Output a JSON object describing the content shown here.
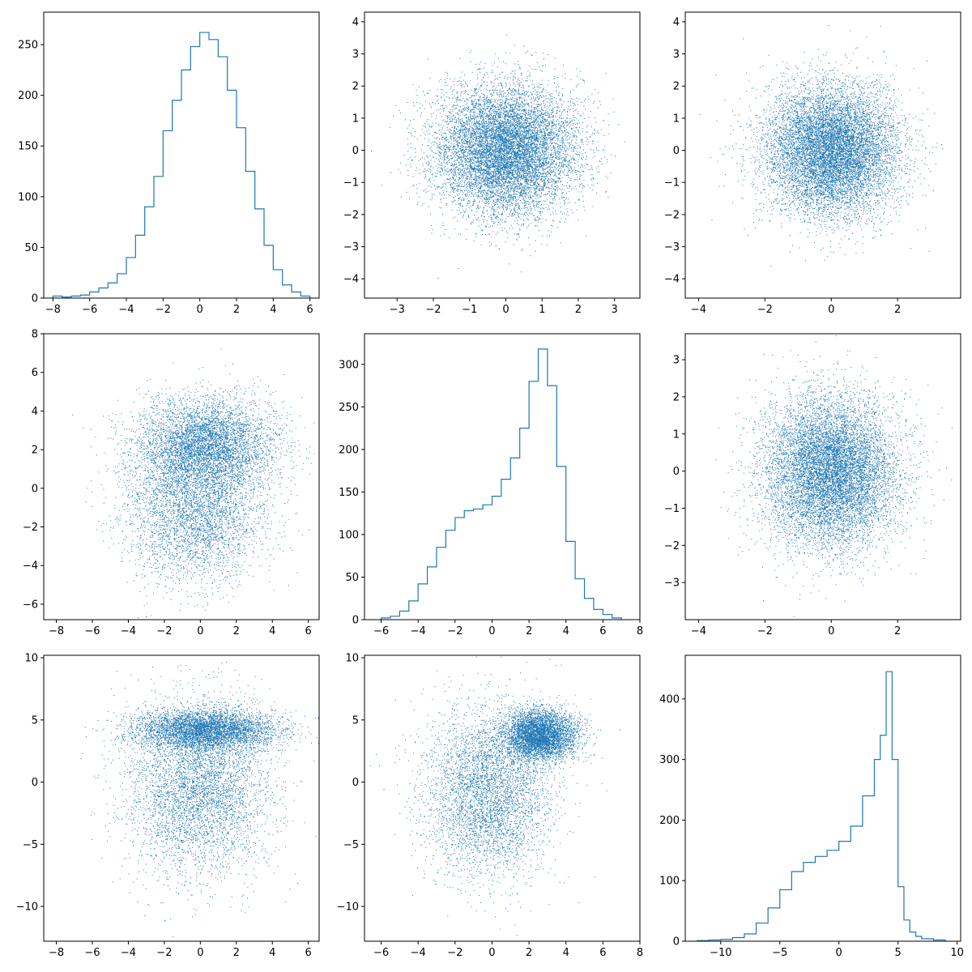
{
  "figure": {
    "layout": "3x3 pair plot",
    "color": "#1f77b4"
  },
  "chart_data": [
    {
      "type": "bar",
      "panel": "row1-col1",
      "histtype": "step",
      "xlim": [
        -8.5,
        6.5
      ],
      "ylim": [
        0,
        282
      ],
      "xticks": [
        -8,
        -6,
        -4,
        -2,
        0,
        2,
        4,
        6
      ],
      "yticks": [
        0,
        50,
        100,
        150,
        200,
        250
      ],
      "bin_edges": [
        -8.0,
        -7.5,
        -7.0,
        -6.5,
        -6.0,
        -5.5,
        -5.0,
        -4.5,
        -4.0,
        -3.5,
        -3.0,
        -2.5,
        -2.0,
        -1.5,
        -1.0,
        -0.5,
        0.0,
        0.5,
        1.0,
        1.5,
        2.0,
        2.5,
        3.0,
        3.5,
        4.0,
        4.5,
        5.0,
        5.5,
        6.0
      ],
      "values": [
        2,
        1,
        2,
        3,
        6,
        10,
        15,
        24,
        40,
        62,
        90,
        120,
        165,
        195,
        225,
        248,
        262,
        255,
        238,
        205,
        168,
        125,
        88,
        52,
        28,
        13,
        6,
        2
      ]
    },
    {
      "type": "scatter",
      "panel": "row1-col2",
      "x_dist": {
        "mean": 0,
        "sd": 0.95
      },
      "y_dist": {
        "mean": 0,
        "sd": 1.0
      },
      "n_points": 10000,
      "xlim": [
        -3.9,
        3.7
      ],
      "ylim": [
        -4.6,
        4.3
      ],
      "xticks": [
        -3,
        -2,
        -1,
        0,
        1,
        2,
        3
      ],
      "yticks": [
        -4,
        -3,
        -2,
        -1,
        0,
        1,
        2,
        3,
        4
      ]
    },
    {
      "type": "scatter",
      "panel": "row1-col3",
      "x_dist": {
        "mean": 0,
        "sd": 1.0
      },
      "y_dist": {
        "mean": 0,
        "sd": 1.0
      },
      "n_points": 10000,
      "xlim": [
        -4.4,
        3.9
      ],
      "ylim": [
        -4.6,
        4.3
      ],
      "xticks": [
        -4,
        -2,
        0,
        2
      ],
      "yticks": [
        -4,
        -3,
        -2,
        -1,
        0,
        1,
        2,
        3,
        4
      ]
    },
    {
      "type": "scatter",
      "panel": "row2-col1",
      "n_points": 9000,
      "mixture": [
        {
          "weight": 0.55,
          "x_mean": 0.3,
          "x_sd": 1.9,
          "y_mean": 2.3,
          "y_sd": 1.2
        },
        {
          "weight": 0.45,
          "x_mean": -0.3,
          "x_sd": 1.9,
          "y_mean": -1.0,
          "y_sd": 1.9
        }
      ],
      "xlim": [
        -8.7,
        6.6
      ],
      "ylim": [
        -6.8,
        8.0
      ],
      "xticks": [
        -8,
        -6,
        -4,
        -2,
        0,
        2,
        4,
        6
      ],
      "yticks": [
        -6,
        -4,
        -2,
        0,
        2,
        4,
        6,
        8
      ]
    },
    {
      "type": "bar",
      "panel": "row2-col2",
      "histtype": "step",
      "xlim": [
        -6.9,
        8.0
      ],
      "ylim": [
        0,
        336
      ],
      "xticks": [
        -6,
        -4,
        -2,
        0,
        2,
        4,
        6,
        8
      ],
      "yticks": [
        0,
        50,
        100,
        150,
        200,
        250,
        300
      ],
      "bin_edges": [
        -6.0,
        -5.5,
        -5.0,
        -4.5,
        -4.0,
        -3.5,
        -3.0,
        -2.5,
        -2.0,
        -1.5,
        -1.0,
        -0.5,
        0.0,
        0.5,
        1.0,
        1.5,
        2.0,
        2.5,
        3.0,
        3.5,
        4.0,
        4.5,
        5.0,
        5.5,
        6.0,
        6.5,
        7.0
      ],
      "values": [
        2,
        4,
        10,
        22,
        42,
        62,
        85,
        105,
        120,
        128,
        130,
        135,
        145,
        165,
        190,
        225,
        280,
        318,
        275,
        180,
        92,
        48,
        25,
        12,
        6,
        2
      ]
    },
    {
      "type": "scatter",
      "panel": "row2-col3",
      "x_dist": {
        "mean": 0,
        "sd": 1.0
      },
      "y_dist": {
        "mean": 0,
        "sd": 1.0
      },
      "n_points": 10000,
      "xlim": [
        -4.4,
        3.9
      ],
      "ylim": [
        -4.0,
        3.7
      ],
      "xticks": [
        -4,
        -2,
        0,
        2
      ],
      "yticks": [
        -3,
        -2,
        -1,
        0,
        1,
        2,
        3
      ]
    },
    {
      "type": "scatter",
      "panel": "row3-col1",
      "n_points": 9000,
      "mixture": [
        {
          "weight": 0.5,
          "x_mean": 0.3,
          "x_sd": 2.0,
          "y_mean": 4.2,
          "y_sd": 0.8
        },
        {
          "weight": 0.5,
          "x_mean": -0.1,
          "x_sd": 1.9,
          "y_mean": -0.5,
          "y_sd": 3.4
        }
      ],
      "xlim": [
        -8.7,
        6.6
      ],
      "ylim": [
        -12.8,
        10.2
      ],
      "xticks": [
        -8,
        -6,
        -4,
        -2,
        0,
        2,
        4,
        6
      ],
      "yticks": [
        -10,
        -5,
        0,
        5,
        10
      ]
    },
    {
      "type": "scatter",
      "panel": "row3-col2",
      "n_points": 9000,
      "mixture": [
        {
          "weight": 0.5,
          "x_mean": 2.6,
          "x_sd": 1.0,
          "y_mean": 3.8,
          "y_sd": 1.0
        },
        {
          "weight": 0.5,
          "x_mean": -0.2,
          "x_sd": 1.7,
          "y_mean": -0.8,
          "y_sd": 3.3
        }
      ],
      "xlim": [
        -6.9,
        8.0
      ],
      "ylim": [
        -12.8,
        10.2
      ],
      "xticks": [
        -6,
        -4,
        -2,
        0,
        2,
        4,
        6,
        8
      ],
      "yticks": [
        -10,
        -5,
        0,
        5,
        10
      ]
    },
    {
      "type": "bar",
      "panel": "row3-col3",
      "histtype": "step",
      "xlim": [
        -13.0,
        10.3
      ],
      "ylim": [
        0,
        472
      ],
      "xticks": [
        -10,
        -5,
        0,
        5,
        10
      ],
      "yticks": [
        0,
        100,
        200,
        300,
        400
      ],
      "bin_edges": [
        -12.0,
        -11.0,
        -10.0,
        -9.0,
        -8.0,
        -7.0,
        -6.0,
        -5.0,
        -4.0,
        -3.0,
        -2.0,
        -1.0,
        0.0,
        1.0,
        2.0,
        3.0,
        3.5,
        4.0,
        4.5,
        5.0,
        5.5,
        6.0,
        6.5,
        7.0,
        8.0,
        9.0
      ],
      "values": [
        1,
        2,
        3,
        6,
        12,
        30,
        55,
        85,
        115,
        130,
        140,
        150,
        165,
        190,
        240,
        300,
        340,
        445,
        300,
        90,
        35,
        15,
        8,
        4,
        2
      ]
    }
  ]
}
